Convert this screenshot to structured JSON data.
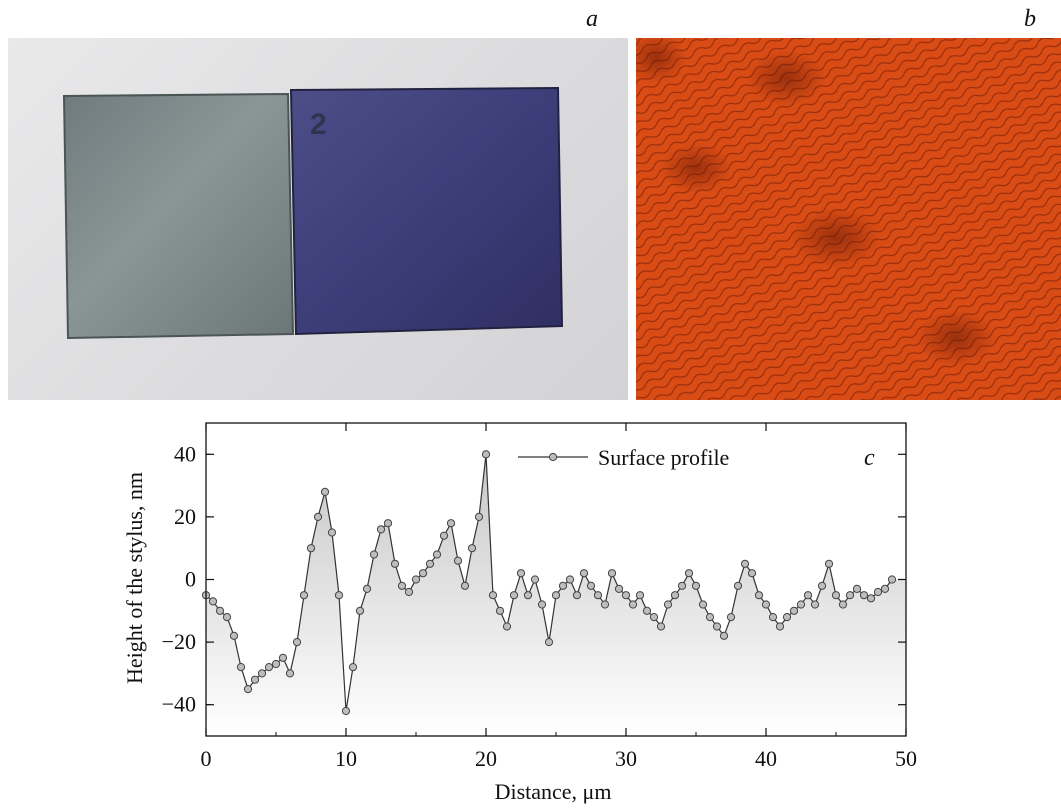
{
  "panels": {
    "a_label": "a",
    "b_label": "b",
    "c_label": "c",
    "sample_mark": "2"
  },
  "colors": {
    "sample_left": "#7b8788",
    "sample_right": "#3f3f7c",
    "microscope_bg": "#d44a14",
    "marker": "#bdbdbd",
    "line": "#333333"
  },
  "chart_data": {
    "type": "line",
    "xlabel": "Distance, μm",
    "ylabel": "Height of the stylus, nm",
    "xlim": [
      0,
      50
    ],
    "ylim": [
      -50,
      50
    ],
    "xticks": [
      0,
      10,
      20,
      30,
      40,
      50
    ],
    "yticks": [
      -40,
      -20,
      0,
      20,
      40
    ],
    "legend_position": "top-center",
    "grid": false,
    "series": [
      {
        "name": "Surface profile",
        "x": [
          0.0,
          0.5,
          1.0,
          1.5,
          2.0,
          2.5,
          3.0,
          3.5,
          4.0,
          4.5,
          5.0,
          5.5,
          6.0,
          6.5,
          7.0,
          7.5,
          8.0,
          8.5,
          9.0,
          9.5,
          10.0,
          10.5,
          11.0,
          11.5,
          12.0,
          12.5,
          13.0,
          13.5,
          14.0,
          14.5,
          15.0,
          15.5,
          16.0,
          16.5,
          17.0,
          17.5,
          18.0,
          18.5,
          19.0,
          19.5,
          20.0,
          20.5,
          21.0,
          21.5,
          22.0,
          22.5,
          23.0,
          23.5,
          24.0,
          24.5,
          25.0,
          25.5,
          26.0,
          26.5,
          27.0,
          27.5,
          28.0,
          28.5,
          29.0,
          29.5,
          30.0,
          30.5,
          31.0,
          31.5,
          32.0,
          32.5,
          33.0,
          33.5,
          34.0,
          34.5,
          35.0,
          35.5,
          36.0,
          36.5,
          37.0,
          37.5,
          38.0,
          38.5,
          39.0,
          39.5,
          40.0,
          40.5,
          41.0,
          41.5,
          42.0,
          42.5,
          43.0,
          43.5,
          44.0,
          44.5,
          45.0,
          45.5,
          46.0,
          46.5,
          47.0,
          47.5,
          48.0,
          48.5,
          49.0
        ],
        "values": [
          -5,
          -7,
          -10,
          -12,
          -18,
          -28,
          -35,
          -32,
          -30,
          -28,
          -27,
          -25,
          -30,
          -20,
          -5,
          10,
          20,
          28,
          15,
          -5,
          -42,
          -28,
          -10,
          -3,
          8,
          16,
          18,
          5,
          -2,
          -4,
          0,
          2,
          5,
          8,
          14,
          18,
          6,
          -2,
          10,
          20,
          40,
          -5,
          -10,
          -15,
          -5,
          2,
          -5,
          0,
          -8,
          -20,
          -5,
          -2,
          0,
          -5,
          2,
          -2,
          -5,
          -8,
          2,
          -3,
          -5,
          -8,
          -5,
          -10,
          -12,
          -15,
          -8,
          -5,
          -2,
          2,
          -2,
          -8,
          -12,
          -15,
          -18,
          -12,
          -2,
          5,
          2,
          -5,
          -8,
          -12,
          -15,
          -12,
          -10,
          -8,
          -5,
          -8,
          -2,
          5,
          -5,
          -8,
          -5,
          -3,
          -5,
          -6,
          -4,
          -3,
          0
        ]
      }
    ]
  }
}
